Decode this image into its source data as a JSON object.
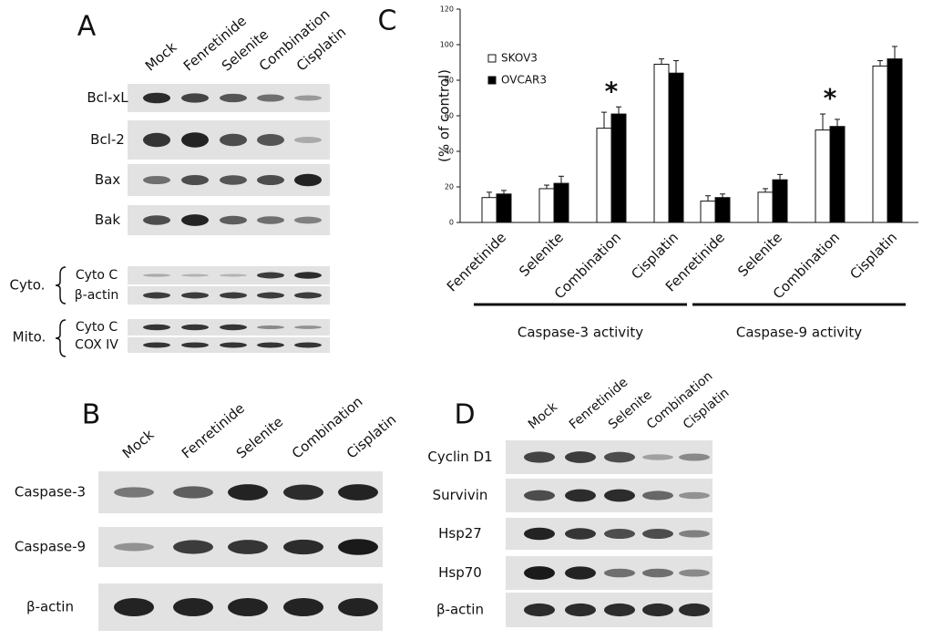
{
  "panels": {
    "A": {
      "label": "A",
      "lanes": [
        "Mock",
        "Fenretinide",
        "Selenite",
        "Combination",
        "Cisplatin"
      ],
      "rows": [
        "Bcl-xL",
        "Bcl-2",
        "Bax",
        "Bak"
      ],
      "cyto": {
        "label": "Cyto.",
        "rows": [
          "Cyto C",
          "β-actin"
        ]
      },
      "mito": {
        "label": "Mito.",
        "rows": [
          "Cyto C",
          "COX IV"
        ]
      }
    },
    "B": {
      "label": "B",
      "lanes": [
        "Mock",
        "Fenretinide",
        "Selenite",
        "Combination",
        "Cisplatin"
      ],
      "rows": [
        "Caspase-3",
        "Caspase-9",
        "β-actin"
      ]
    },
    "C": {
      "label": "C"
    },
    "D": {
      "label": "D",
      "lanes": [
        "Mock",
        "Fenretinide",
        "Selenite",
        "Combination",
        "Cisplatin"
      ],
      "rows": [
        "Cyclin D1",
        "Survivin",
        "Hsp27",
        "Hsp70",
        "β-actin"
      ]
    }
  },
  "chart_data": {
    "type": "bar",
    "y_label": "(% of control)",
    "categories": [
      "Fenretinide",
      "Selenite",
      "Combination",
      "Cisplatin",
      "Fenretinide",
      "Selenite",
      "Combination",
      "Cisplatin"
    ],
    "group_labels": [
      "Caspase-3 activity",
      "Caspase-9 activity"
    ],
    "series": [
      {
        "name": "SKOV3",
        "color": "#ffffff",
        "values": [
          14,
          19,
          53,
          89,
          12,
          17,
          52,
          88
        ],
        "errors": [
          3,
          2,
          9,
          3,
          3,
          2,
          9,
          3
        ]
      },
      {
        "name": "OVCAR3",
        "color": "#000000",
        "values": [
          16,
          22,
          61,
          84,
          14,
          24,
          54,
          92
        ],
        "errors": [
          2,
          4,
          4,
          7,
          2,
          3,
          4,
          7
        ]
      }
    ],
    "annotations": [
      {
        "text": "*",
        "category": 2
      },
      {
        "text": "*",
        "category": 6
      }
    ],
    "ylim": [
      0,
      120
    ],
    "yticks": [
      0,
      20,
      40,
      60,
      80,
      100,
      120
    ],
    "legend": "upper left"
  }
}
